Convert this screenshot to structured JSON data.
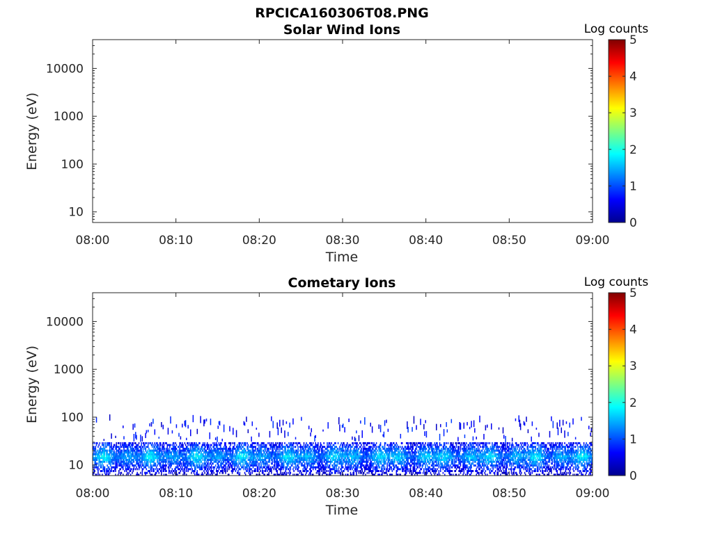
{
  "figure_title": "RPCICA160306T08.PNG",
  "chart_data": [
    {
      "type": "heatmap",
      "title": "Solar Wind Ions",
      "xlabel": "Time",
      "ylabel": "Energy (eV)",
      "x_ticks": [
        "08:00",
        "08:10",
        "08:20",
        "08:30",
        "08:40",
        "08:50",
        "09:00"
      ],
      "x_range": [
        "08:00",
        "09:00"
      ],
      "y_scale": "log",
      "y_ticks": [
        10,
        100,
        1000,
        10000
      ],
      "y_tick_labels": [
        "10",
        "100",
        "1000",
        "10000"
      ],
      "y_range": [
        6,
        40000
      ],
      "colorbar": {
        "label": "Log counts",
        "range": [
          0,
          5
        ],
        "ticks": [
          "0",
          "1",
          "2",
          "3",
          "4",
          "5"
        ],
        "colormap": "jet"
      },
      "band": null
    },
    {
      "type": "heatmap",
      "title": "Cometary Ions",
      "xlabel": "Time",
      "ylabel": "Energy (eV)",
      "x_ticks": [
        "08:00",
        "08:10",
        "08:20",
        "08:30",
        "08:40",
        "08:50",
        "09:00"
      ],
      "x_range": [
        "08:00",
        "09:00"
      ],
      "y_scale": "log",
      "y_ticks": [
        10,
        100,
        1000,
        10000
      ],
      "y_tick_labels": [
        "10",
        "100",
        "1000",
        "10000"
      ],
      "y_range": [
        6,
        40000
      ],
      "colorbar": {
        "label": "Log counts",
        "range": [
          0,
          5
        ],
        "ticks": [
          "0",
          "1",
          "2",
          "3",
          "4",
          "5"
        ],
        "colormap": "jet"
      },
      "band": {
        "energy_min_eV": 6,
        "energy_max_eV": 30,
        "peak_energy_eV": 15,
        "peak_log_counts": 1.9,
        "sparse_energy_max_eV": 85,
        "sparse_log_counts": 0.8
      }
    }
  ]
}
